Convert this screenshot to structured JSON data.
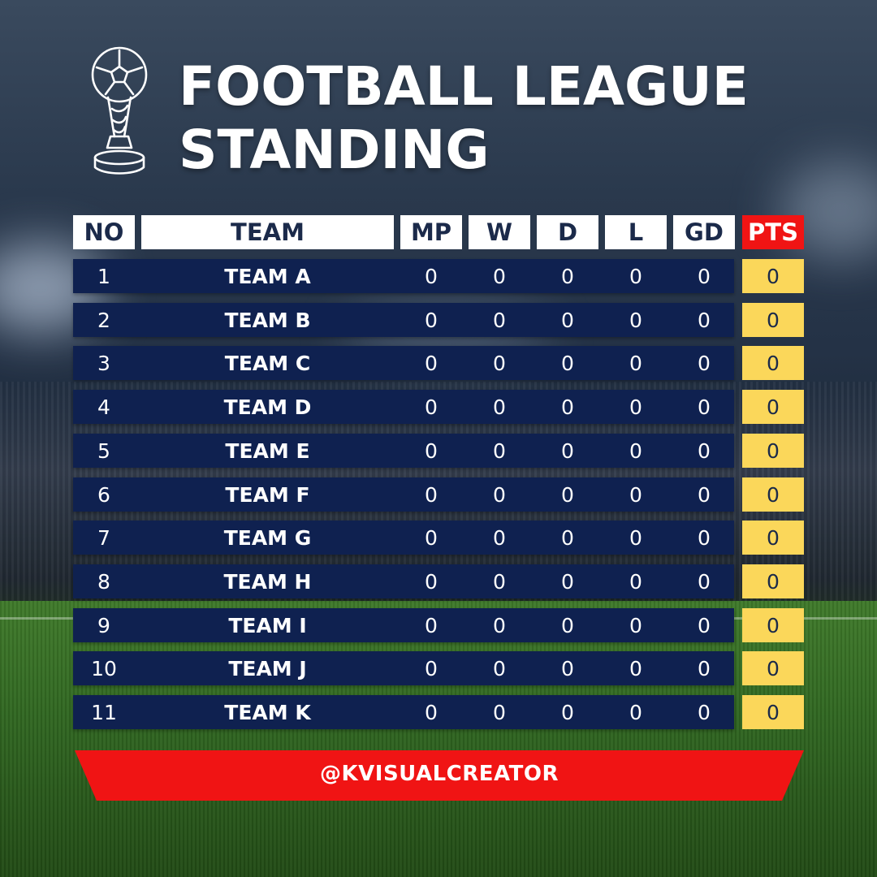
{
  "title": {
    "line1": "FOOTBALL LEAGUE",
    "line2": "STANDING"
  },
  "table": {
    "headers": [
      "NO",
      "TEAM",
      "MP",
      "W",
      "D",
      "L",
      "GD",
      "PTS"
    ],
    "rows": [
      {
        "no": "1",
        "team": "TEAM A",
        "mp": "0",
        "w": "0",
        "d": "0",
        "l": "0",
        "gd": "0",
        "pts": "0"
      },
      {
        "no": "2",
        "team": "TEAM B",
        "mp": "0",
        "w": "0",
        "d": "0",
        "l": "0",
        "gd": "0",
        "pts": "0"
      },
      {
        "no": "3",
        "team": "TEAM C",
        "mp": "0",
        "w": "0",
        "d": "0",
        "l": "0",
        "gd": "0",
        "pts": "0"
      },
      {
        "no": "4",
        "team": "TEAM D",
        "mp": "0",
        "w": "0",
        "d": "0",
        "l": "0",
        "gd": "0",
        "pts": "0"
      },
      {
        "no": "5",
        "team": "TEAM E",
        "mp": "0",
        "w": "0",
        "d": "0",
        "l": "0",
        "gd": "0",
        "pts": "0"
      },
      {
        "no": "6",
        "team": "TEAM F",
        "mp": "0",
        "w": "0",
        "d": "0",
        "l": "0",
        "gd": "0",
        "pts": "0"
      },
      {
        "no": "7",
        "team": "TEAM G",
        "mp": "0",
        "w": "0",
        "d": "0",
        "l": "0",
        "gd": "0",
        "pts": "0"
      },
      {
        "no": "8",
        "team": "TEAM H",
        "mp": "0",
        "w": "0",
        "d": "0",
        "l": "0",
        "gd": "0",
        "pts": "0"
      },
      {
        "no": "9",
        "team": "TEAM I",
        "mp": "0",
        "w": "0",
        "d": "0",
        "l": "0",
        "gd": "0",
        "pts": "0"
      },
      {
        "no": "10",
        "team": "TEAM J",
        "mp": "0",
        "w": "0",
        "d": "0",
        "l": "0",
        "gd": "0",
        "pts": "0"
      },
      {
        "no": "11",
        "team": "TEAM K",
        "mp": "0",
        "w": "0",
        "d": "0",
        "l": "0",
        "gd": "0",
        "pts": "0"
      }
    ]
  },
  "footer": {
    "handle": "@KVISUALCREATOR"
  },
  "icons": {
    "trophy": "trophy-icon"
  },
  "colors": {
    "row_bg": "#0f2150",
    "header_bg": "#ffffff",
    "pts_header_bg": "#f01414",
    "pts_cell_bg": "#fbd75a",
    "banner_bg": "#f01414"
  }
}
